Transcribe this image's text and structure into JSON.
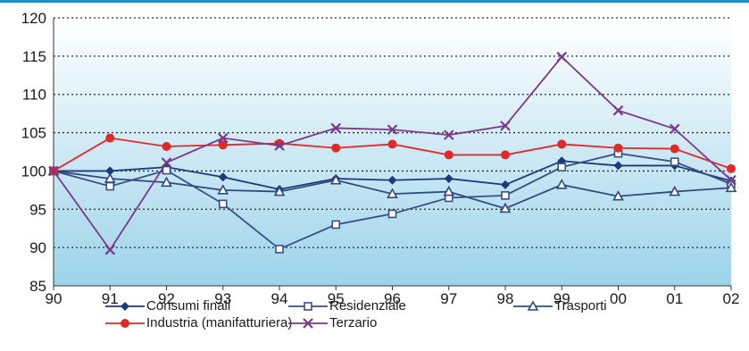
{
  "colors": {
    "top_rule": "#1f8fc9",
    "plot_gradient_top": "#ffffff",
    "plot_gradient_bottom": "#9dd3ea",
    "gridline": "#2a2a2a"
  },
  "chart_data": {
    "type": "line",
    "x": [
      "90",
      "91",
      "92",
      "93",
      "94",
      "95",
      "96",
      "97",
      "98",
      "99",
      "00",
      "01",
      "02"
    ],
    "ylim": [
      85,
      120
    ],
    "yticks": [
      "85",
      "90",
      "95",
      "100",
      "105",
      "110",
      "115",
      "120"
    ],
    "grid": true,
    "legend_position": "bottom",
    "series": [
      {
        "name": "Consumi finali",
        "color": "#1c3a7a",
        "marker": "diamond",
        "values": [
          100,
          100,
          100.5,
          99.2,
          97.6,
          99,
          98.8,
          99,
          98.2,
          101.3,
          100.7,
          100.7,
          98.7
        ]
      },
      {
        "name": "Residenziale",
        "color": "#3a4f86",
        "marker": "square",
        "values": [
          100,
          98,
          100.1,
          95.7,
          89.8,
          93,
          94.4,
          96.5,
          96.8,
          100.5,
          102.3,
          101.2,
          98.3
        ]
      },
      {
        "name": "Trasporti",
        "color": "#2f4a80",
        "marker": "triangle",
        "values": [
          100,
          99,
          98.5,
          97.5,
          97.3,
          98.8,
          97,
          97.3,
          95.1,
          98.2,
          96.7,
          97.3,
          97.8
        ]
      },
      {
        "name": "Industria (manifatturiera)",
        "color": "#e02a2a",
        "marker": "circle",
        "values": [
          100,
          104.3,
          103.2,
          103.4,
          103.6,
          103,
          103.5,
          102.1,
          102.1,
          103.5,
          103,
          102.9,
          100.3
        ]
      },
      {
        "name": "Terzario",
        "color": "#7a3a8a",
        "marker": "x",
        "values": [
          100,
          89.7,
          101.1,
          104.3,
          103.3,
          105.6,
          105.4,
          104.7,
          105.9,
          114.9,
          107.9,
          105.5,
          98.8
        ]
      }
    ]
  }
}
